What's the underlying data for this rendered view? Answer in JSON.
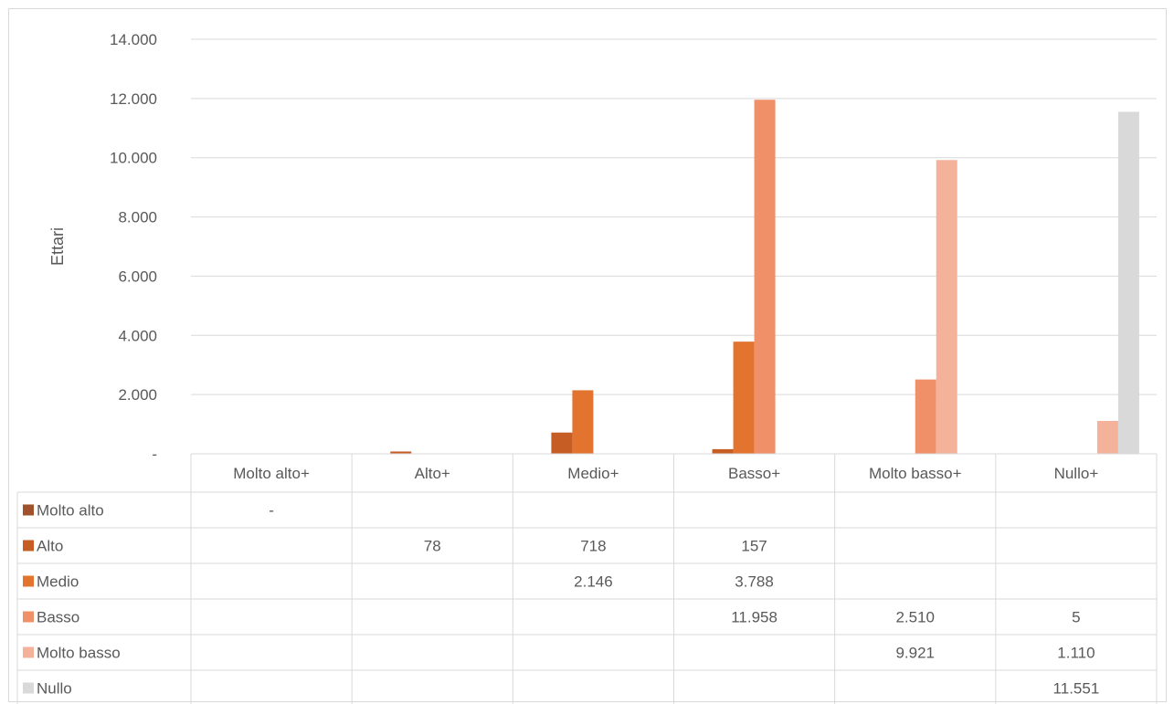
{
  "chart_data": {
    "type": "bar",
    "ylabel": "Ettari",
    "ylim": [
      0,
      14000
    ],
    "yticks": [
      0,
      2000,
      4000,
      6000,
      8000,
      10000,
      12000,
      14000
    ],
    "ytick_labels": [
      "-",
      "2.000",
      "4.000",
      "6.000",
      "8.000",
      "10.000",
      "12.000",
      "14.000"
    ],
    "grid": true,
    "legend": "data-table",
    "categories": [
      "Molto alto+",
      "Alto+",
      "Medio+",
      "Basso+",
      "Molto basso+",
      "Nullo+"
    ],
    "series": [
      {
        "name": "Molto alto",
        "color": "#a0522d",
        "values": [
          0,
          null,
          null,
          null,
          null,
          null
        ],
        "labels": [
          "-",
          "",
          "",
          "",
          "",
          ""
        ]
      },
      {
        "name": "Alto",
        "color": "#c65d25",
        "values": [
          null,
          78,
          718,
          157,
          null,
          null
        ],
        "labels": [
          "",
          "78",
          "718",
          "157",
          "",
          ""
        ]
      },
      {
        "name": "Medio",
        "color": "#e2742f",
        "values": [
          null,
          null,
          2146,
          3788,
          null,
          null
        ],
        "labels": [
          "",
          "",
          "2.146",
          "3.788",
          "",
          ""
        ]
      },
      {
        "name": "Basso",
        "color": "#ef9068",
        "values": [
          null,
          null,
          null,
          11958,
          2510,
          5
        ],
        "labels": [
          "",
          "",
          "",
          "11.958",
          "2.510",
          "5"
        ]
      },
      {
        "name": "Molto basso",
        "color": "#f4b29a",
        "values": [
          null,
          null,
          null,
          null,
          9921,
          1110
        ],
        "labels": [
          "",
          "",
          "",
          "",
          "9.921",
          "1.110"
        ]
      },
      {
        "name": "Nullo",
        "color": "#d9d9d9",
        "values": [
          null,
          null,
          null,
          null,
          null,
          11551
        ],
        "labels": [
          "",
          "",
          "",
          "",
          "",
          "11.551"
        ]
      }
    ]
  }
}
